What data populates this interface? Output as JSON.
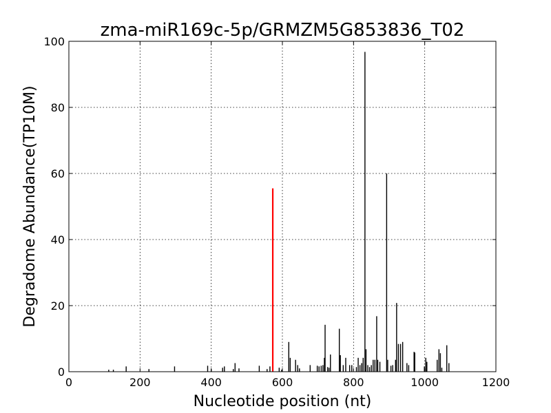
{
  "chart_data": {
    "type": "bar",
    "title": "zma-miR169c-5p/GRMZM5G853836_T02",
    "xlabel": "Nucleotide position (nt)",
    "ylabel": "Degradome Abundance(TP10M)",
    "xlim": [
      0,
      1200
    ],
    "ylim": [
      0,
      100
    ],
    "xticks": [
      "0",
      "200",
      "400",
      "600",
      "800",
      "1000",
      "1200"
    ],
    "yticks": [
      "0",
      "20",
      "40",
      "60",
      "80",
      "100"
    ],
    "grid": true,
    "highlight_color": "#ff0000",
    "default_color": "#000000",
    "highlight": {
      "x": 573,
      "y": 55.5
    },
    "series": [
      {
        "values": [
          [
            112,
            0.6
          ],
          [
            125,
            0.6
          ],
          [
            161,
            1.6
          ],
          [
            225,
            0.8
          ],
          [
            297,
            1.6
          ],
          [
            390,
            1.8
          ],
          [
            400,
            0.8
          ],
          [
            432,
            1.2
          ],
          [
            437,
            1.6
          ],
          [
            462,
            0.8
          ],
          [
            467,
            2.6
          ],
          [
            478,
            1.0
          ],
          [
            535,
            1.8
          ],
          [
            557,
            0.8
          ],
          [
            565,
            1.6
          ],
          [
            591,
            1.2
          ],
          [
            598,
            0.6
          ],
          [
            618,
            9.0
          ],
          [
            622,
            4.2
          ],
          [
            637,
            3.6
          ],
          [
            643,
            2.0
          ],
          [
            648,
            1.0
          ],
          [
            678,
            2.0
          ],
          [
            698,
            1.8
          ],
          [
            703,
            1.6
          ],
          [
            709,
            1.8
          ],
          [
            714,
            2.0
          ],
          [
            718,
            4.2
          ],
          [
            720,
            14.2
          ],
          [
            727,
            1.4
          ],
          [
            731,
            1.2
          ],
          [
            735,
            5.2
          ],
          [
            760,
            13.0
          ],
          [
            763,
            5.0
          ],
          [
            771,
            2.0
          ],
          [
            778,
            4.2
          ],
          [
            789,
            2.0
          ],
          [
            795,
            2.0
          ],
          [
            808,
            1.4
          ],
          [
            813,
            4.2
          ],
          [
            818,
            2.0
          ],
          [
            823,
            2.6
          ],
          [
            827,
            4.2
          ],
          [
            832,
            96.8
          ],
          [
            835,
            6.8
          ],
          [
            840,
            2.0
          ],
          [
            845,
            1.4
          ],
          [
            850,
            2.0
          ],
          [
            855,
            3.6
          ],
          [
            860,
            3.6
          ],
          [
            865,
            16.8
          ],
          [
            868,
            3.6
          ],
          [
            874,
            3.0
          ],
          [
            893,
            60.0
          ],
          [
            896,
            3.6
          ],
          [
            905,
            1.8
          ],
          [
            910,
            2.0
          ],
          [
            918,
            3.6
          ],
          [
            921,
            20.8
          ],
          [
            926,
            8.4
          ],
          [
            932,
            8.4
          ],
          [
            938,
            9.0
          ],
          [
            950,
            2.6
          ],
          [
            955,
            2.0
          ],
          [
            970,
            6.0
          ],
          [
            972,
            5.8
          ],
          [
            999,
            1.6
          ],
          [
            1003,
            4.2
          ],
          [
            1006,
            3.0
          ],
          [
            1035,
            3.6
          ],
          [
            1040,
            6.8
          ],
          [
            1044,
            5.6
          ],
          [
            1048,
            1.2
          ],
          [
            1062,
            8.0
          ],
          [
            1068,
            2.6
          ]
        ]
      }
    ]
  }
}
